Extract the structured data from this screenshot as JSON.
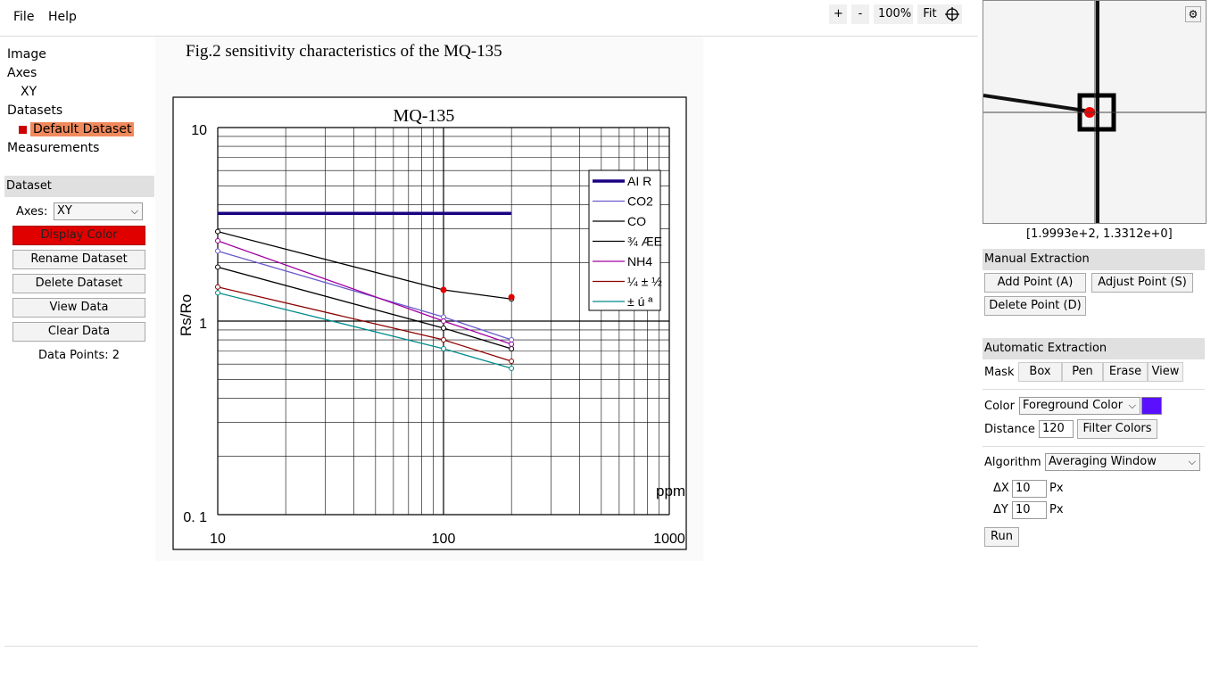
{
  "menu": {
    "file": "File",
    "help": "Help"
  },
  "zoom": {
    "plus": "+",
    "minus": "-",
    "level": "100%",
    "fit": "Fit"
  },
  "tree": {
    "image": "Image",
    "axes": "Axes",
    "axes_child": "XY",
    "datasets": "Datasets",
    "dataset_child": "Default Dataset",
    "measurements": "Measurements"
  },
  "dataset_panel": {
    "header": "Dataset",
    "axes_label": "Axes:",
    "axes_value": "XY",
    "display_color": "Display Color",
    "rename": "Rename Dataset",
    "delete": "Delete Dataset",
    "view": "View Data",
    "clear": "Clear Data",
    "points": "Data Points: 2",
    "display_color_hex": "#dd0000"
  },
  "magnifier": {
    "coords": "[1.9993e+2, 1.3312e+0]"
  },
  "manual": {
    "header": "Manual Extraction",
    "add": "Add Point (A)",
    "adjust": "Adjust Point (S)",
    "delete": "Delete Point (D)"
  },
  "auto": {
    "header": "Automatic Extraction",
    "mask_label": "Mask",
    "box": "Box",
    "pen": "Pen",
    "erase": "Erase",
    "view": "View",
    "color_label": "Color",
    "color_mode": "Foreground Color",
    "color_hex": "#5a10ff",
    "distance_label": "Distance",
    "distance_value": "120",
    "filter": "Filter Colors",
    "algorithm_label": "Algorithm",
    "algorithm_value": "Averaging Window",
    "dx_label": "ΔX",
    "dx_value": "10",
    "dy_label": "ΔY",
    "dy_value": "10",
    "px": "Px",
    "run": "Run"
  },
  "figure": {
    "caption": "Fig.2 sensitivity characteristics of the MQ-135"
  },
  "chart_data": {
    "type": "line",
    "title": "MQ-135",
    "xlabel": "ppm",
    "ylabel": "Rs/Ro",
    "xscale": "log",
    "yscale": "log",
    "xlim": [
      10,
      1000
    ],
    "ylim": [
      0.1,
      10
    ],
    "x_ticks": [
      "10",
      "100",
      "1000"
    ],
    "y_ticks": [
      "10",
      "1",
      "0. 1"
    ],
    "legend_position": "top-right",
    "series": [
      {
        "name": "AI R",
        "color": "#1a0080",
        "x": [
          10,
          200
        ],
        "y": [
          3.6,
          3.6
        ]
      },
      {
        "name": "CO2",
        "color": "#6a5acd",
        "x": [
          10,
          100,
          200
        ],
        "y": [
          2.3,
          1.05,
          0.8
        ]
      },
      {
        "name": "CO",
        "color": "#000000",
        "x": [
          10,
          100,
          200
        ],
        "y": [
          2.9,
          1.45,
          1.3
        ]
      },
      {
        "name": "¾ ÆE",
        "color": "#000000",
        "x": [
          10,
          100,
          200
        ],
        "y": [
          1.9,
          0.92,
          0.72
        ]
      },
      {
        "name": "NH4",
        "color": "#a000a0",
        "x": [
          10,
          100,
          200
        ],
        "y": [
          2.6,
          1.0,
          0.76
        ]
      },
      {
        "name": "¼ ± ½",
        "color": "#8b0000",
        "x": [
          10,
          100,
          200
        ],
        "y": [
          1.5,
          0.8,
          0.62
        ]
      },
      {
        "name": "± ú ª",
        "color": "#008b8b",
        "x": [
          10,
          100,
          200
        ],
        "y": [
          1.4,
          0.72,
          0.57
        ]
      }
    ],
    "digitized_points": {
      "x": [
        100,
        200
      ],
      "y": [
        1.45,
        1.33
      ]
    }
  }
}
